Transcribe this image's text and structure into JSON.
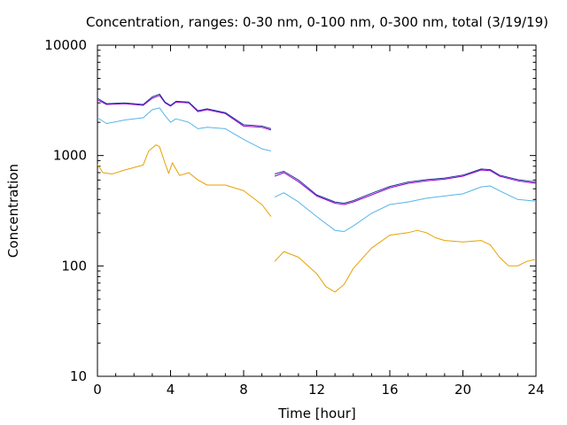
{
  "chart_data": {
    "type": "line",
    "title": "Concentration, ranges: 0-30 nm, 0-100 nm, 0-300 nm, total (3/19/19)",
    "xlabel": "Time [hour]",
    "ylabel": "Concentration",
    "xlim": [
      0,
      24
    ],
    "ylim": [
      10,
      10000
    ],
    "yscale": "log",
    "grid": false,
    "legend": "none",
    "xticks": [
      0,
      4,
      8,
      12,
      16,
      20,
      24
    ],
    "xtick_labels": [
      "0",
      "4",
      "8",
      "12",
      "16",
      "20",
      "24"
    ],
    "yticks": [
      10,
      100,
      1000,
      10000
    ],
    "ytick_labels": [
      "10",
      "100",
      "1000",
      "10000"
    ],
    "series": [
      {
        "color": "#e6a100",
        "x": [
          0,
          0.3,
          0.8,
          1.5,
          2.5,
          2.8,
          3.2,
          3.4,
          3.7,
          3.9,
          4.1,
          4.3,
          4.5,
          5.0,
          5.5,
          6.0,
          7.0,
          8.0,
          9.0,
          9.5,
          9.7,
          10.2,
          11.0,
          12.0,
          12.5,
          13.0,
          13.5,
          14.0,
          15.0,
          16.0,
          17.0,
          17.5,
          18.0,
          18.5,
          19.0,
          20.0,
          21.0,
          21.5,
          22.0,
          22.5,
          23.0,
          23.5,
          24.0
        ],
        "segments": [
          [
            0,
            19
          ],
          [
            20,
            42
          ]
        ],
        "y": [
          830,
          700,
          680,
          740,
          820,
          1100,
          1250,
          1200,
          850,
          690,
          860,
          750,
          660,
          700,
          600,
          540,
          540,
          480,
          360,
          280,
          110,
          135,
          120,
          85,
          65,
          58,
          68,
          95,
          145,
          190,
          200,
          210,
          200,
          180,
          170,
          165,
          170,
          155,
          120,
          100,
          100,
          110,
          115
        ]
      },
      {
        "color": "#56b4e9",
        "x": [
          0,
          0.5,
          1.5,
          2.5,
          3.0,
          3.4,
          3.7,
          4.0,
          4.3,
          5.0,
          5.5,
          6.0,
          7.0,
          8.0,
          9.0,
          9.5,
          9.7,
          10.2,
          11.0,
          12.0,
          13.0,
          13.5,
          14.0,
          15.0,
          16.0,
          17.0,
          18.0,
          19.0,
          20.0,
          21.0,
          21.5,
          22.0,
          23.0,
          24.0
        ],
        "segments": [
          [
            0,
            15
          ],
          [
            16,
            33
          ]
        ],
        "y": [
          2200,
          1950,
          2100,
          2200,
          2600,
          2700,
          2300,
          2000,
          2150,
          2000,
          1750,
          1800,
          1750,
          1400,
          1150,
          1100,
          420,
          460,
          380,
          280,
          210,
          205,
          230,
          300,
          360,
          380,
          410,
          430,
          450,
          520,
          530,
          480,
          400,
          385
        ]
      },
      {
        "color": "#9400d3",
        "x": [
          0,
          0.5,
          1.5,
          2.5,
          3.0,
          3.4,
          3.7,
          4.0,
          4.3,
          5.0,
          5.5,
          6.0,
          7.0,
          8.0,
          9.0,
          9.5,
          9.7,
          10.2,
          11.0,
          12.0,
          13.0,
          13.5,
          14.0,
          15.0,
          16.0,
          17.0,
          18.0,
          19.0,
          20.0,
          21.0,
          21.5,
          22.0,
          23.0,
          24.0
        ],
        "segments": [
          [
            0,
            15
          ],
          [
            16,
            33
          ]
        ],
        "y": [
          3200,
          2900,
          2950,
          2850,
          3300,
          3500,
          3000,
          2800,
          3050,
          3000,
          2500,
          2600,
          2400,
          1850,
          1800,
          1700,
          650,
          700,
          580,
          430,
          370,
          360,
          380,
          440,
          510,
          560,
          590,
          610,
          650,
          740,
          730,
          650,
          590,
          560
        ]
      },
      {
        "color": "#1f3a93",
        "x": [
          0,
          0.5,
          1.5,
          2.5,
          3.0,
          3.4,
          3.7,
          4.0,
          4.3,
          5.0,
          5.5,
          6.0,
          7.0,
          8.0,
          9.0,
          9.5,
          9.7,
          10.2,
          11.0,
          12.0,
          13.0,
          13.5,
          14.0,
          15.0,
          16.0,
          17.0,
          18.0,
          19.0,
          20.0,
          21.0,
          21.5,
          22.0,
          23.0,
          24.0
        ],
        "segments": [
          [
            0,
            15
          ],
          [
            16,
            33
          ]
        ],
        "y": [
          3300,
          2950,
          3000,
          2900,
          3400,
          3600,
          3050,
          2850,
          3100,
          3050,
          2550,
          2650,
          2450,
          1900,
          1850,
          1750,
          680,
          720,
          600,
          440,
          380,
          370,
          390,
          455,
          525,
          575,
          605,
          625,
          665,
          755,
          745,
          665,
          605,
          575
        ]
      }
    ]
  }
}
